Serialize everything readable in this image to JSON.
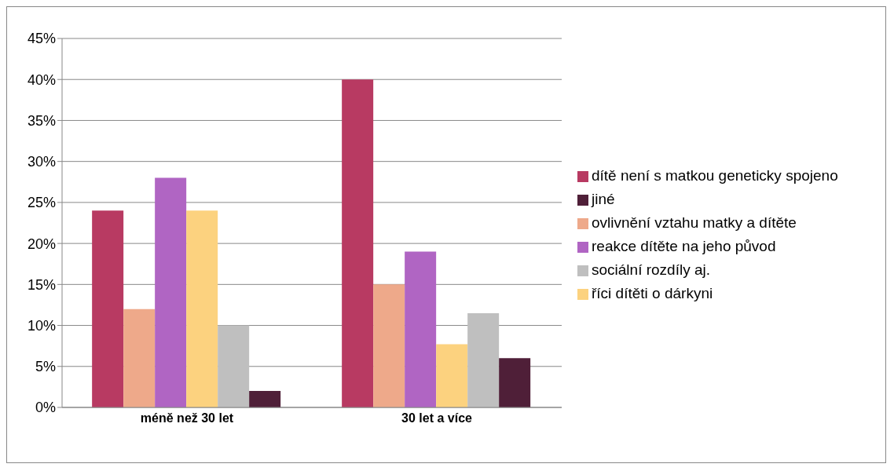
{
  "chart_data": {
    "type": "bar",
    "categories": [
      "méně než 30 let",
      "30 let a více"
    ],
    "series": [
      {
        "name": "dítě není s matkou geneticky spojeno",
        "color": "#b83a62",
        "values": [
          24,
          40
        ]
      },
      {
        "name": "ovlivnění vztahu matky a dítěte",
        "color": "#eea98a",
        "values": [
          12,
          15
        ]
      },
      {
        "name": "reakce dítěte na jeho původ",
        "color": "#b065c3",
        "values": [
          28,
          19
        ]
      },
      {
        "name": "říci dítěti o dárkyni",
        "color": "#fcd27f",
        "values": [
          24,
          7.7
        ]
      },
      {
        "name": "sociální rozdíly aj.",
        "color": "#bfbfbf",
        "values": [
          10,
          11.5
        ]
      },
      {
        "name": "jiné",
        "color": "#4f1f38",
        "values": [
          2,
          6
        ]
      }
    ],
    "ylim": [
      0,
      45
    ],
    "yticks": [
      {
        "value": 0,
        "label": "0%"
      },
      {
        "value": 5,
        "label": "5%"
      },
      {
        "value": 10,
        "label": "10%"
      },
      {
        "value": 15,
        "label": "15%"
      },
      {
        "value": 20,
        "label": "20%"
      },
      {
        "value": 25,
        "label": "25%"
      },
      {
        "value": 30,
        "label": "30%"
      },
      {
        "value": 35,
        "label": "35%"
      },
      {
        "value": 40,
        "label": "40%"
      },
      {
        "value": 45,
        "label": "45%"
      }
    ],
    "grid": "y",
    "legend": "right"
  }
}
